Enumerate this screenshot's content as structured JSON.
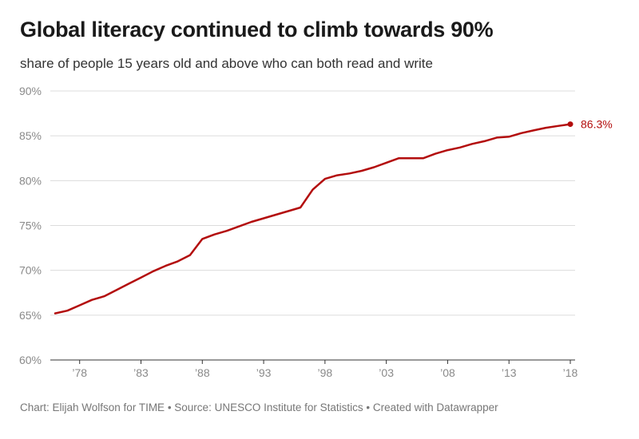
{
  "header": {
    "title": "Global literacy continued to climb towards 90%",
    "subtitle": "share of people 15 years old and above who can both read and write"
  },
  "footer": {
    "credit": "Chart: Elijah Wolfson for TIME • Source: UNESCO Institute for Statistics • Created with Datawrapper"
  },
  "colors": {
    "line": "#b30d0d",
    "grid": "#dcdcdc",
    "axis": "#333333"
  },
  "chart_data": {
    "type": "line",
    "title": "Global literacy continued to climb towards 90%",
    "subtitle": "share of people 15 years old and above who can both read and write",
    "xlabel": "",
    "ylabel": "",
    "xlim": [
      1976,
      2018
    ],
    "ylim": [
      60,
      90
    ],
    "y_ticks": [
      {
        "value": 60,
        "label": "60%"
      },
      {
        "value": 65,
        "label": "65%"
      },
      {
        "value": 70,
        "label": "70%"
      },
      {
        "value": 75,
        "label": "75%"
      },
      {
        "value": 80,
        "label": "80%"
      },
      {
        "value": 85,
        "label": "85%"
      },
      {
        "value": 90,
        "label": "90%"
      }
    ],
    "x_ticks": [
      {
        "value": 1978,
        "label": "’78"
      },
      {
        "value": 1983,
        "label": "’83"
      },
      {
        "value": 1988,
        "label": "’88"
      },
      {
        "value": 1993,
        "label": "’93"
      },
      {
        "value": 1998,
        "label": "’98"
      },
      {
        "value": 2003,
        "label": "’03"
      },
      {
        "value": 2008,
        "label": "’08"
      },
      {
        "value": 2013,
        "label": "’13"
      },
      {
        "value": 2018,
        "label": "’18"
      }
    ],
    "grid": true,
    "x": [
      1976,
      1977,
      1978,
      1979,
      1980,
      1981,
      1982,
      1983,
      1984,
      1985,
      1986,
      1987,
      1988,
      1989,
      1990,
      1991,
      1992,
      1993,
      1994,
      1995,
      1996,
      1997,
      1998,
      1999,
      2000,
      2001,
      2002,
      2003,
      2004,
      2005,
      2006,
      2007,
      2008,
      2009,
      2010,
      2011,
      2012,
      2013,
      2014,
      2015,
      2016,
      2017,
      2018
    ],
    "series": [
      {
        "values": [
          65.2,
          65.5,
          66.1,
          66.7,
          67.1,
          67.8,
          68.5,
          69.2,
          69.9,
          70.5,
          71.0,
          71.7,
          73.5,
          74.0,
          74.4,
          74.9,
          75.4,
          75.8,
          76.2,
          76.6,
          77.0,
          79.0,
          80.2,
          80.6,
          80.8,
          81.1,
          81.5,
          82.0,
          82.5,
          82.5,
          82.5,
          83.0,
          83.4,
          83.7,
          84.1,
          84.4,
          84.8,
          84.9,
          85.3,
          85.6,
          85.9,
          86.1,
          86.3
        ]
      }
    ],
    "end_label": "86.3%"
  }
}
